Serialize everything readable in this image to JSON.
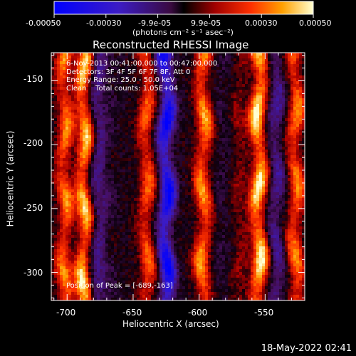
{
  "colorbar": {
    "tick_labels": [
      "-0.00050",
      "-0.00030",
      "-9.9e-05",
      "9.9e-05",
      "0.00030",
      "0.00050"
    ],
    "units": "(photons cm⁻² s⁻¹ asec⁻²)"
  },
  "annotations": {
    "time_range": "6-Nov-2013 00:41:00.000 to 00:47:00.000",
    "detectors": "Detectors: 3F 4F 5F 6F 7F 8F, Att 0",
    "energy": "Energy Range: 25.0 - 50.0 keV",
    "counts": "Clean    Total counts: 1.05E+04",
    "peak": "Position of Peak = [-689,-163]"
  },
  "timestamp": "18-May-2022 02:41",
  "chart_data": {
    "type": "heatmap",
    "title": "Reconstructed RHESSI Image",
    "xlabel": "Heliocentric X (arcsec)",
    "ylabel": "Heliocentric Y (arcsec)",
    "xlim": [
      -712,
      -520
    ],
    "ylim": [
      -322,
      -128
    ],
    "x_ticks": [
      -700,
      -650,
      -600,
      -550
    ],
    "x_tick_labels": [
      "-700",
      "-650",
      "-600",
      "-550"
    ],
    "y_ticks": [
      -150,
      -200,
      -250,
      -300
    ],
    "y_tick_labels": [
      "-150",
      "-200",
      "-250",
      "-300"
    ],
    "colormap": "red temperature",
    "color_range": [
      -0.0005,
      0.0005
    ],
    "stripes": [
      {
        "x": -703,
        "amp": 0.7
      },
      {
        "x": -688,
        "amp": 1.0
      },
      {
        "x": -671,
        "amp": 0.2
      },
      {
        "x": -656,
        "amp": 0.0
      },
      {
        "x": -641,
        "amp": 0.6
      },
      {
        "x": -626,
        "amp": -0.95
      },
      {
        "x": -611,
        "amp": 0.0
      },
      {
        "x": -598,
        "amp": 0.75
      },
      {
        "x": -584,
        "amp": -0.1
      },
      {
        "x": -570,
        "amp": 0.2
      },
      {
        "x": -556,
        "amp": 1.0
      },
      {
        "x": -543,
        "amp": -0.4
      },
      {
        "x": -528,
        "amp": 0.7
      }
    ],
    "peak_position": [
      -689,
      -163
    ]
  }
}
